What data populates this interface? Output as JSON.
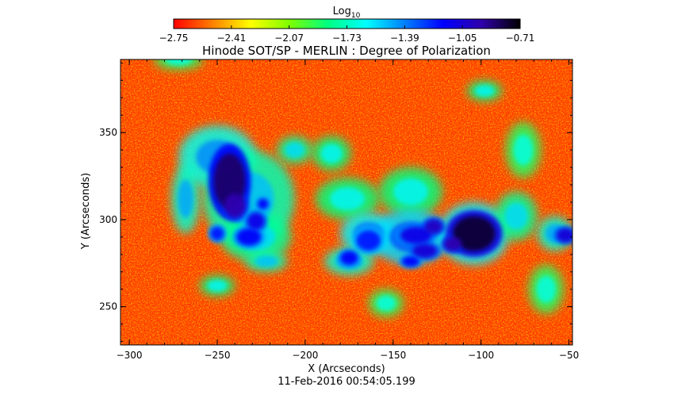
{
  "chart_data": {
    "type": "heatmap",
    "title": "Hinode SOT/SP - MERLIN : Degree of Polarization",
    "subtitle": "11-Feb-2016 00:54:05.199",
    "xlabel": "X (Arcseconds)",
    "ylabel": "Y (Arcseconds)",
    "xlim": [
      -305,
      -48
    ],
    "ylim": [
      228,
      392
    ],
    "x_ticks": [
      -300,
      -250,
      -200,
      -150,
      -100,
      -50
    ],
    "y_ticks": [
      250,
      300,
      350
    ],
    "colorbar": {
      "label_base": "Log",
      "label_sub": "10",
      "range": [
        -2.75,
        -0.71
      ],
      "ticks": [
        -2.75,
        -2.41,
        -2.07,
        -1.73,
        -1.39,
        -1.05,
        -0.71
      ],
      "colormap": [
        "#ff0000",
        "#ff7f00",
        "#ffff00",
        "#7fff00",
        "#00ff80",
        "#00ffff",
        "#0080ff",
        "#0000ff",
        "#3000aa",
        "#000000"
      ]
    },
    "background_color": "#ff3300",
    "polarized_regions": [
      {
        "x": -243,
        "y": 322,
        "rx": 9,
        "ry": 16,
        "value": -0.85
      },
      {
        "x": -240,
        "y": 308,
        "rx": 6,
        "ry": 7,
        "value": -0.95
      },
      {
        "x": -228,
        "y": 299,
        "rx": 5,
        "ry": 5,
        "value": -1.1
      },
      {
        "x": -232,
        "y": 290,
        "rx": 7,
        "ry": 5,
        "value": -1.15
      },
      {
        "x": -250,
        "y": 292,
        "rx": 4,
        "ry": 4,
        "value": -1.2
      },
      {
        "x": -224,
        "y": 309,
        "rx": 3,
        "ry": 3,
        "value": -1.15
      },
      {
        "x": -164,
        "y": 288,
        "rx": 7,
        "ry": 6,
        "value": -1.2
      },
      {
        "x": -175,
        "y": 278,
        "rx": 5,
        "ry": 4,
        "value": -1.15
      },
      {
        "x": -137,
        "y": 291,
        "rx": 9,
        "ry": 5,
        "value": -1.1
      },
      {
        "x": -127,
        "y": 296,
        "rx": 5,
        "ry": 4,
        "value": -1.0
      },
      {
        "x": -132,
        "y": 282,
        "rx": 7,
        "ry": 4,
        "value": -1.05
      },
      {
        "x": -140,
        "y": 276,
        "rx": 5,
        "ry": 3,
        "value": -1.15
      },
      {
        "x": -104,
        "y": 292,
        "rx": 12,
        "ry": 10,
        "value": -0.78
      },
      {
        "x": -116,
        "y": 286,
        "rx": 5,
        "ry": 4,
        "value": -0.95
      },
      {
        "x": -52,
        "y": 291,
        "rx": 5,
        "ry": 4,
        "value": -1.05
      }
    ],
    "network_regions": [
      {
        "x": -250,
        "y": 336,
        "rx": 22,
        "ry": 18,
        "value": -1.65
      },
      {
        "x": -232,
        "y": 312,
        "rx": 26,
        "ry": 28,
        "value": -1.75
      },
      {
        "x": -228,
        "y": 290,
        "rx": 20,
        "ry": 14,
        "value": -1.8
      },
      {
        "x": -268,
        "y": 312,
        "rx": 8,
        "ry": 20,
        "value": -1.7
      },
      {
        "x": -206,
        "y": 340,
        "rx": 10,
        "ry": 8,
        "value": -1.8
      },
      {
        "x": -185,
        "y": 338,
        "rx": 11,
        "ry": 10,
        "value": -1.85
      },
      {
        "x": -176,
        "y": 312,
        "rx": 18,
        "ry": 12,
        "value": -1.85
      },
      {
        "x": -164,
        "y": 292,
        "rx": 16,
        "ry": 12,
        "value": -1.6
      },
      {
        "x": -175,
        "y": 276,
        "rx": 14,
        "ry": 8,
        "value": -1.7
      },
      {
        "x": -140,
        "y": 316,
        "rx": 18,
        "ry": 14,
        "value": -1.85
      },
      {
        "x": -140,
        "y": 290,
        "rx": 22,
        "ry": 16,
        "value": -1.55
      },
      {
        "x": -104,
        "y": 292,
        "rx": 20,
        "ry": 18,
        "value": -1.6
      },
      {
        "x": -80,
        "y": 302,
        "rx": 12,
        "ry": 14,
        "value": -1.8
      },
      {
        "x": -76,
        "y": 340,
        "rx": 10,
        "ry": 16,
        "value": -1.9
      },
      {
        "x": -63,
        "y": 260,
        "rx": 10,
        "ry": 14,
        "value": -1.9
      },
      {
        "x": -98,
        "y": 374,
        "rx": 10,
        "ry": 6,
        "value": -1.85
      },
      {
        "x": -58,
        "y": 292,
        "rx": 10,
        "ry": 10,
        "value": -1.7
      },
      {
        "x": -250,
        "y": 262,
        "rx": 10,
        "ry": 6,
        "value": -1.85
      },
      {
        "x": -154,
        "y": 252,
        "rx": 10,
        "ry": 8,
        "value": -1.9
      },
      {
        "x": -222,
        "y": 276,
        "rx": 12,
        "ry": 6,
        "value": -1.75
      },
      {
        "x": -272,
        "y": 392,
        "rx": 14,
        "ry": 6,
        "value": -1.9
      }
    ]
  }
}
